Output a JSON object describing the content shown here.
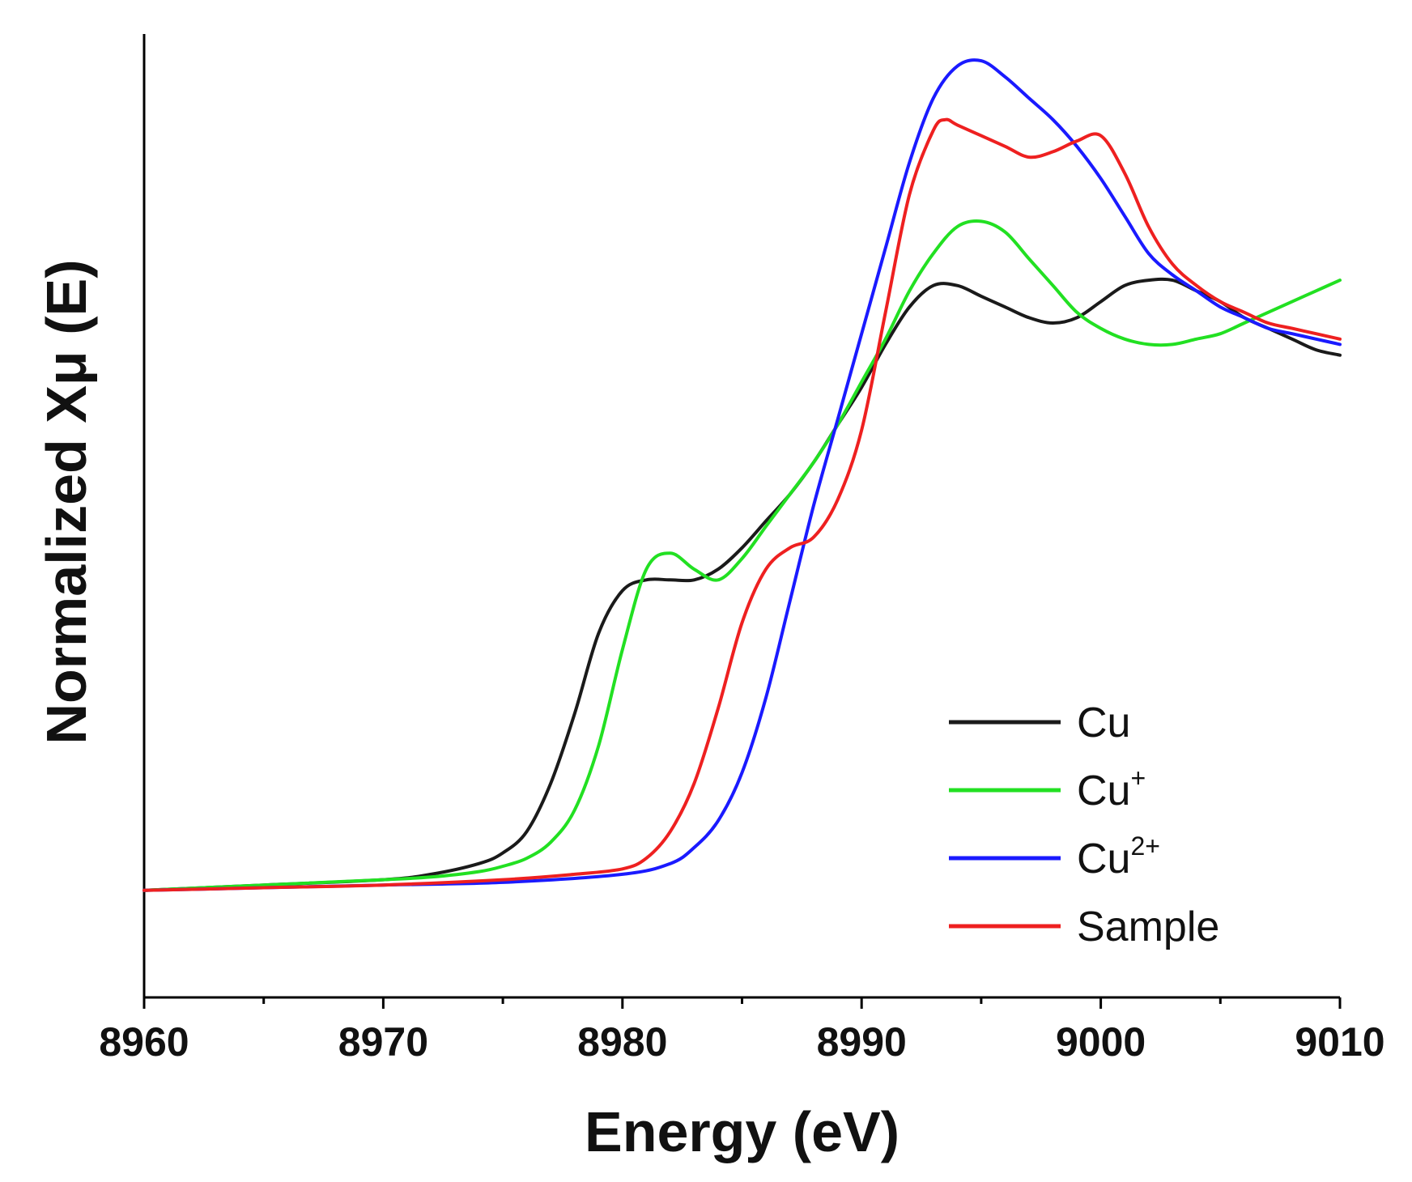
{
  "chart_data": {
    "type": "line",
    "title": "",
    "xlabel": "Energy (eV)",
    "ylabel": "Normalized Xμ (E)",
    "xlim": [
      8960,
      9010
    ],
    "ylim": [
      -0.2,
      1.6
    ],
    "xticks": [
      8960,
      8970,
      8980,
      8990,
      9000,
      9010
    ],
    "xtick_labels": [
      "8960",
      "8970",
      "8980",
      "8990",
      "9000",
      "9010"
    ],
    "legend_position": "lower-right",
    "series": [
      {
        "name": "Cu",
        "label_base": "Cu",
        "label_sup": "",
        "color": "#1a1a1a",
        "x": [
          8960,
          8965,
          8970,
          8972,
          8974,
          8975,
          8976,
          8977,
          8978,
          8979,
          8980,
          8981,
          8982,
          8983,
          8984,
          8985,
          8986,
          8987,
          8988,
          8989,
          8990,
          8991,
          8992,
          8993,
          8994,
          8995,
          8996,
          8997,
          8998,
          8999,
          9000,
          9001,
          9002,
          9003,
          9004,
          9005,
          9006,
          9007,
          9008,
          9009,
          9010
        ],
        "y": [
          0.0,
          0.01,
          0.02,
          0.03,
          0.05,
          0.07,
          0.11,
          0.2,
          0.33,
          0.48,
          0.56,
          0.58,
          0.58,
          0.58,
          0.6,
          0.64,
          0.69,
          0.74,
          0.8,
          0.87,
          0.94,
          1.02,
          1.09,
          1.13,
          1.13,
          1.11,
          1.09,
          1.07,
          1.06,
          1.07,
          1.1,
          1.13,
          1.14,
          1.14,
          1.12,
          1.1,
          1.07,
          1.05,
          1.03,
          1.01,
          1.0
        ]
      },
      {
        "name": "Cu+",
        "label_base": "Cu",
        "label_sup": "+",
        "color": "#22e022",
        "x": [
          8960,
          8965,
          8970,
          8972,
          8974,
          8975,
          8976,
          8977,
          8978,
          8979,
          8980,
          8981,
          8982,
          8983,
          8984,
          8985,
          8986,
          8987,
          8988,
          8989,
          8990,
          8991,
          8992,
          8993,
          8994,
          8995,
          8996,
          8997,
          8998,
          8999,
          9000,
          9001,
          9002,
          9003,
          9004,
          9005,
          9006,
          9007,
          9008,
          9009,
          9010
        ],
        "y": [
          0.0,
          0.01,
          0.02,
          0.025,
          0.035,
          0.045,
          0.06,
          0.09,
          0.15,
          0.27,
          0.45,
          0.6,
          0.63,
          0.6,
          0.58,
          0.62,
          0.68,
          0.74,
          0.8,
          0.87,
          0.95,
          1.03,
          1.12,
          1.19,
          1.24,
          1.25,
          1.23,
          1.18,
          1.13,
          1.08,
          1.05,
          1.03,
          1.02,
          1.02,
          1.03,
          1.04,
          1.06,
          1.08,
          1.1,
          1.12,
          1.14
        ]
      },
      {
        "name": "Cu2+",
        "label_base": "Cu",
        "label_sup": "2+",
        "color": "#1a1aff",
        "x": [
          8960,
          8965,
          8970,
          8975,
          8980,
          8982,
          8983,
          8984,
          8985,
          8986,
          8987,
          8988,
          8989,
          8990,
          8991,
          8992,
          8993,
          8994,
          8995,
          8996,
          8997,
          8998,
          8999,
          9000,
          9001,
          9002,
          9003,
          9004,
          9005,
          9006,
          9007,
          9008,
          9009,
          9010
        ],
        "y": [
          0.0,
          0.005,
          0.01,
          0.015,
          0.03,
          0.05,
          0.08,
          0.13,
          0.22,
          0.36,
          0.54,
          0.72,
          0.88,
          1.04,
          1.2,
          1.36,
          1.48,
          1.54,
          1.55,
          1.52,
          1.48,
          1.44,
          1.39,
          1.33,
          1.26,
          1.19,
          1.15,
          1.12,
          1.09,
          1.07,
          1.05,
          1.04,
          1.03,
          1.02
        ]
      },
      {
        "name": "Sample",
        "label_base": "Sample",
        "label_sup": "",
        "color": "#ee2020",
        "x": [
          8960,
          8965,
          8970,
          8975,
          8978,
          8980,
          8981,
          8982,
          8983,
          8984,
          8985,
          8986,
          8987,
          8988,
          8989,
          8990,
          8991,
          8992,
          8993,
          8993.5,
          8994,
          8995,
          8996,
          8997,
          8998,
          8999,
          9000,
          9001,
          9002,
          9003,
          9004,
          9005,
          9006,
          9007,
          9008,
          9009,
          9010
        ],
        "y": [
          0.0,
          0.005,
          0.01,
          0.02,
          0.03,
          0.04,
          0.06,
          0.11,
          0.2,
          0.34,
          0.5,
          0.6,
          0.64,
          0.66,
          0.73,
          0.86,
          1.08,
          1.3,
          1.42,
          1.44,
          1.43,
          1.41,
          1.39,
          1.37,
          1.38,
          1.4,
          1.41,
          1.34,
          1.24,
          1.17,
          1.13,
          1.1,
          1.08,
          1.06,
          1.05,
          1.04,
          1.03
        ]
      }
    ]
  }
}
